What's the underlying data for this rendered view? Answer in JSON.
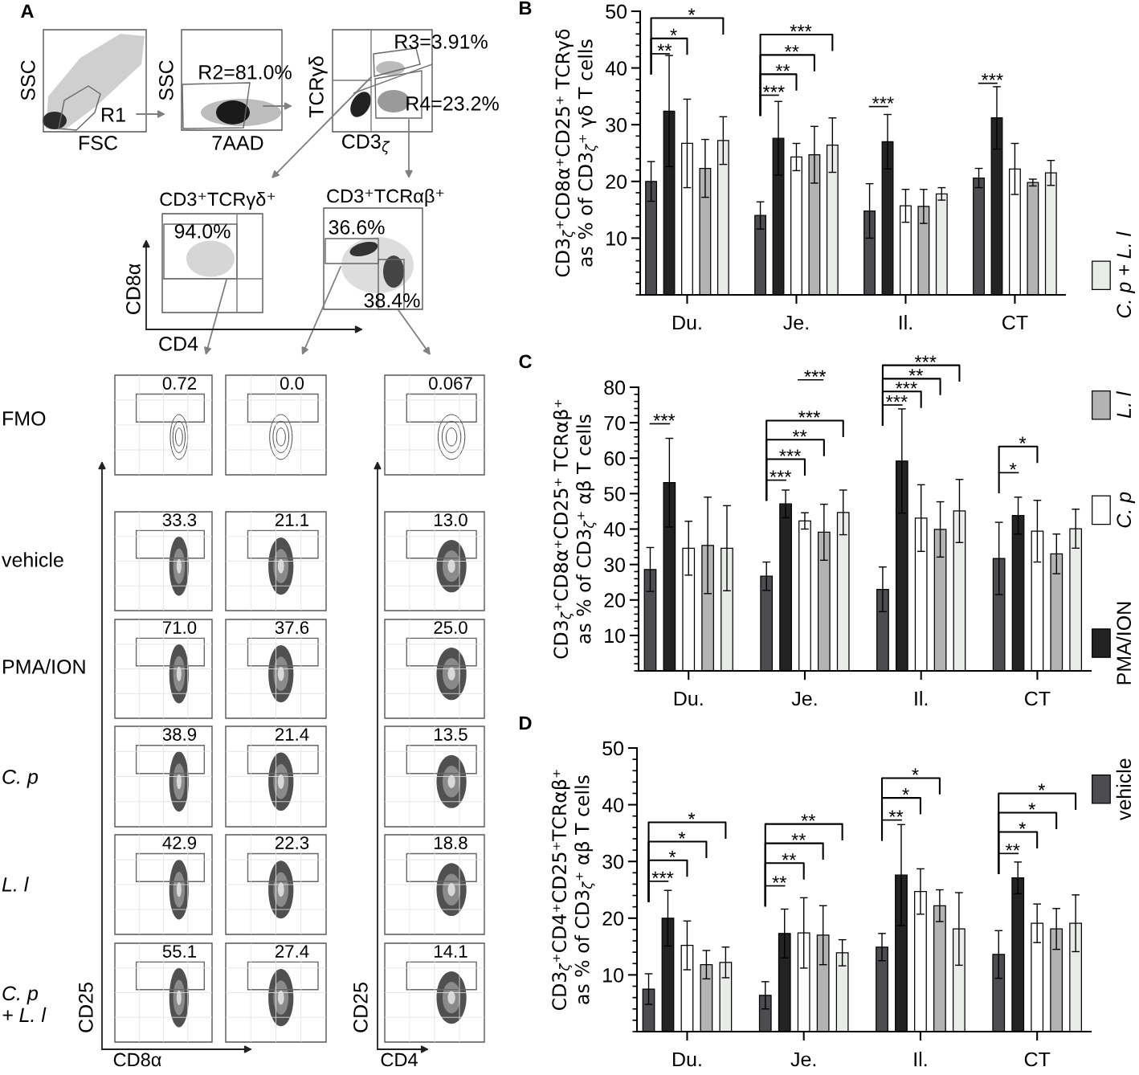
{
  "chart_data": [
    {
      "type": "other",
      "title": "A",
      "annotations": [
        "SSC",
        "FSC",
        "R1",
        "SSC",
        "R2=81.0%",
        "7AAD",
        "TCRγδ",
        "CD3$_{ζ}$",
        "R3=3.91%",
        "R4=23.2%",
        "CD3⁺TCRγδ⁺",
        "CD3⁺TCRαβ⁺",
        "94.0%",
        "36.6%",
        "38.4%",
        "CD8α",
        "CD4",
        "FMO",
        "vehicle",
        "PMA/ION",
        "C. p",
        "L. l",
        "C. p\n+ L. l",
        "0.72",
        "0.0",
        "0.067",
        "33.3",
        "21.1",
        "13.0",
        "71.0",
        "37.6",
        "25.0",
        "38.9",
        "21.4",
        "13.5",
        "42.9",
        "22.3",
        "18.8",
        "55.1",
        "27.4",
        "14.1",
        "CD25",
        "CD8α",
        "CD25",
        "CD4"
      ]
    },
    {
      "type": "bar",
      "title": "B",
      "ylabel": "CD3$_{ζ}$⁺CD8α⁺CD25⁺ TCRγδ\nas % of CD3$_{ζ}$⁺ γδ T cells",
      "categories": [
        "Du.",
        "Je.",
        "Il.",
        "CT"
      ],
      "ylim": [
        0,
        50
      ],
      "yticks": [
        10,
        20,
        30,
        40,
        50
      ],
      "legend": "right",
      "series": [
        {
          "name": "vehicle",
          "color": "#4d4d4f",
          "values": [
            20.0,
            14.0,
            14.8,
            20.6
          ],
          "errors": [
            3.5,
            2.4,
            4.8,
            1.7
          ]
        },
        {
          "name": "PMA/ION",
          "color": "#232323",
          "values": [
            32.4,
            27.6,
            27.0,
            31.2
          ],
          "errors": [
            9.8,
            6.5,
            4.8,
            5.5
          ]
        },
        {
          "name": "C. p",
          "color": "#ffffff",
          "values": [
            26.7,
            24.3,
            15.7,
            22.2
          ],
          "errors": [
            7.8,
            2.4,
            2.9,
            4.5
          ]
        },
        {
          "name": "L. l",
          "color": "#b3b3b3",
          "values": [
            22.3,
            24.7,
            15.6,
            19.8
          ],
          "errors": [
            5.1,
            5.0,
            3.0,
            0.6
          ]
        },
        {
          "name": "C. p + L. l",
          "color": "#e9ebe9",
          "values": [
            27.2,
            26.4,
            17.8,
            21.5
          ],
          "errors": [
            4.2,
            4.8,
            1.1,
            2.2
          ]
        }
      ],
      "annotations": [
        "**",
        "*",
        "*",
        "***",
        "**",
        "**",
        "***",
        "***",
        "***"
      ]
    },
    {
      "type": "bar",
      "title": "C",
      "ylabel": "CD3$_{ζ}$⁺CD8α⁺CD25⁺ TCRαβ⁺\nas % of CD3$_{ζ}$⁺ αβ T cells",
      "categories": [
        "Du.",
        "Je.",
        "Il.",
        "CT"
      ],
      "ylim": [
        0,
        80
      ],
      "yticks": [
        10,
        20,
        30,
        40,
        50,
        60,
        70,
        80
      ],
      "series": [
        {
          "color": "#4d4d4f",
          "values": [
            28.6,
            26.7,
            23.0,
            31.7
          ],
          "errors": [
            6.2,
            4.0,
            6.3,
            10.2
          ]
        },
        {
          "color": "#232323",
          "values": [
            53.1,
            47.1,
            59.2,
            43.8
          ],
          "errors": [
            12.5,
            3.9,
            14.7,
            5.2
          ]
        },
        {
          "color": "#ffffff",
          "values": [
            34.6,
            42.3,
            43.1,
            39.4
          ],
          "errors": [
            7.6,
            2.3,
            9.4,
            8.7
          ]
        },
        {
          "color": "#b3b3b3",
          "values": [
            35.4,
            39.1,
            39.9,
            33.0
          ],
          "errors": [
            13.6,
            7.9,
            7.8,
            5.6
          ]
        },
        {
          "color": "#e9ebe9",
          "values": [
            34.6,
            44.7,
            45.1,
            40.1
          ],
          "errors": [
            12.0,
            6.3,
            8.9,
            5.5
          ]
        }
      ],
      "annotations": [
        "***",
        "***",
        "***",
        "**",
        "***",
        "***",
        "***",
        "***",
        "**",
        "***",
        "*",
        "*"
      ]
    },
    {
      "type": "bar",
      "title": "D",
      "ylabel": "CD3$_{ζ}$⁺CD4⁺CD25⁺TCRαβ⁺\nas % of CD3$_{ζ}$⁺ αβ T cells",
      "categories": [
        "Du.",
        "Je.",
        "Il.",
        "CT"
      ],
      "ylim": [
        0,
        50
      ],
      "yticks": [
        10,
        20,
        30,
        40,
        50
      ],
      "series": [
        {
          "color": "#4d4d4f",
          "values": [
            7.5,
            6.4,
            14.9,
            13.6
          ],
          "errors": [
            2.7,
            2.4,
            2.4,
            4.2
          ]
        },
        {
          "color": "#232323",
          "values": [
            20.0,
            17.3,
            27.6,
            27.1
          ],
          "errors": [
            4.9,
            4.3,
            8.9,
            2.8
          ]
        },
        {
          "color": "#ffffff",
          "values": [
            15.2,
            17.4,
            24.7,
            19.1
          ],
          "errors": [
            4.3,
            6.2,
            4.0,
            3.4
          ]
        },
        {
          "color": "#b3b3b3",
          "values": [
            11.8,
            17.0,
            22.2,
            18.1
          ],
          "errors": [
            2.5,
            5.2,
            2.8,
            3.6
          ]
        },
        {
          "color": "#e9ebe9",
          "values": [
            12.2,
            13.9,
            18.1,
            19.1
          ],
          "errors": [
            2.7,
            2.3,
            6.4,
            5.0
          ]
        }
      ],
      "annotations": [
        "***",
        "*",
        "*",
        "*",
        "**",
        "**",
        "**",
        "**",
        "**",
        "*",
        "*",
        "**",
        "*",
        "*",
        "*"
      ]
    }
  ]
}
